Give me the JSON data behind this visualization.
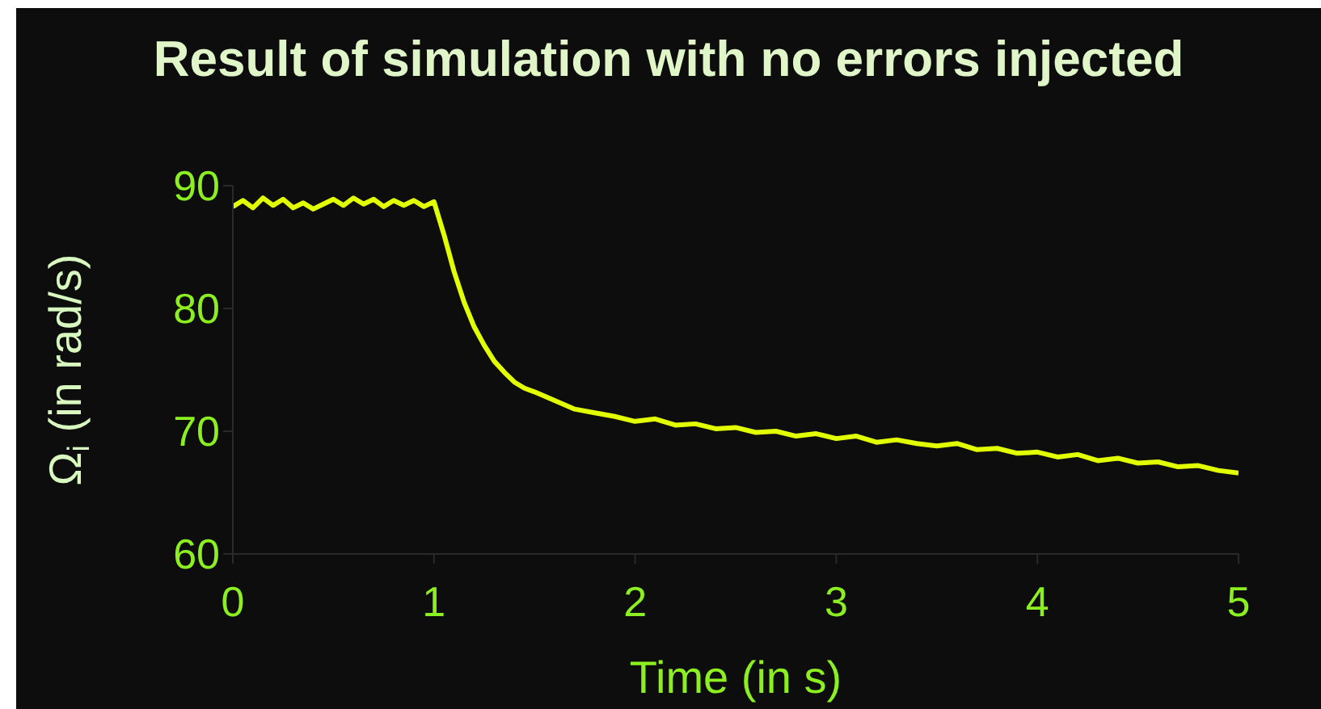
{
  "chart_data": {
    "type": "line",
    "title": "Result of simulation with no errors injected",
    "xlabel": "Time (in s)",
    "ylabel": "Ω$_{i}$ (in rad/s)",
    "x": [
      0,
      0.05,
      0.1,
      0.15,
      0.2,
      0.25,
      0.3,
      0.35,
      0.4,
      0.45,
      0.5,
      0.55,
      0.6,
      0.65,
      0.7,
      0.75,
      0.8,
      0.85,
      0.9,
      0.95,
      1.0,
      1.05,
      1.1,
      1.15,
      1.2,
      1.25,
      1.3,
      1.35,
      1.4,
      1.45,
      1.5,
      1.6,
      1.7,
      1.8,
      1.9,
      2.0,
      2.1,
      2.2,
      2.3,
      2.4,
      2.5,
      2.6,
      2.7,
      2.8,
      2.9,
      3.0,
      3.1,
      3.2,
      3.3,
      3.4,
      3.5,
      3.6,
      3.7,
      3.8,
      3.9,
      4.0,
      4.1,
      4.2,
      4.3,
      4.4,
      4.5,
      4.6,
      4.7,
      4.8,
      4.9,
      5.0
    ],
    "series": [
      {
        "color": "#e2ff00",
        "values": [
          88.3,
          88.8,
          88.2,
          89,
          88.4,
          88.9,
          88.2,
          88.6,
          88.1,
          88.5,
          88.9,
          88.4,
          89,
          88.5,
          88.9,
          88.3,
          88.8,
          88.4,
          88.8,
          88.3,
          88.7,
          86,
          83,
          80.5,
          78.5,
          77,
          75.7,
          74.8,
          74,
          73.5,
          73.2,
          72.5,
          71.8,
          71.5,
          71.2,
          70.8,
          71.0,
          70.5,
          70.6,
          70.2,
          70.3,
          69.9,
          70.0,
          69.6,
          69.8,
          69.4,
          69.6,
          69.1,
          69.3,
          69.0,
          68.8,
          69.0,
          68.5,
          68.6,
          68.2,
          68.3,
          67.9,
          68.1,
          67.6,
          67.8,
          67.4,
          67.5,
          67.1,
          67.2,
          66.8,
          66.6
        ]
      }
    ],
    "xlim": [
      0,
      5
    ],
    "xticks": [
      0,
      1,
      2,
      3,
      4,
      5
    ],
    "ylim": [
      60,
      90
    ],
    "yticks": [
      60,
      70,
      80,
      90
    ],
    "grid": false,
    "marker": "none",
    "line_style": "solid"
  }
}
